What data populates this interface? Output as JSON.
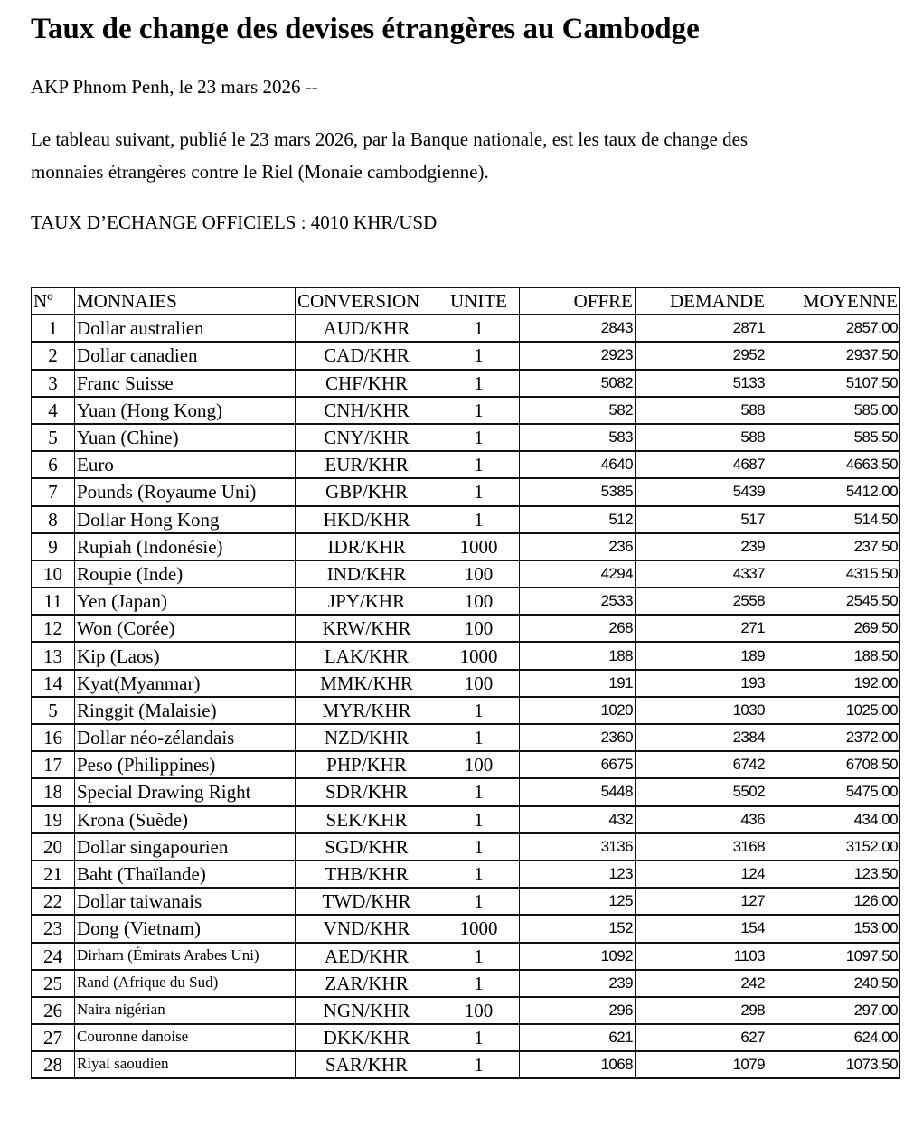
{
  "title": "Taux de change des devises étrangères au Cambodge",
  "dateline": "AKP Phnom Penh, le 23 mars 2026 --",
  "intro_line1": "Le tableau suivant, publié le 23 mars 2026, par la Banque nationale, est les taux de change des",
  "intro_line2": "monnaies étrangères contre le Riel (Monaie cambodgienne).",
  "official_rate": "TAUX D’ECHANGE OFFICIELS :   4010 KHR/USD",
  "table": {
    "headers": [
      "Nº",
      "MONNAIES",
      "CONVERSION",
      "UNITE",
      "OFFRE",
      "DEMANDE",
      "MOYENNE"
    ],
    "rows": [
      [
        "1",
        "Dollar australien",
        "AUD/KHR",
        "1",
        "2843",
        "2871",
        "2857.00"
      ],
      [
        "2",
        "Dollar canadien",
        "CAD/KHR",
        "1",
        "2923",
        "2952",
        "2937.50"
      ],
      [
        "3",
        "Franc Suisse",
        "CHF/KHR",
        "1",
        "5082",
        "5133",
        "5107.50"
      ],
      [
        "4",
        "Yuan (Hong Kong)",
        "CNH/KHR",
        "1",
        "582",
        "588",
        "585.00"
      ],
      [
        "5",
        "Yuan (Chine)",
        "CNY/KHR",
        "1",
        "583",
        "588",
        "585.50"
      ],
      [
        "6",
        "Euro",
        "EUR/KHR",
        "1",
        "4640",
        "4687",
        "4663.50"
      ],
      [
        "7",
        "Pounds (Royaume Uni)",
        "GBP/KHR",
        "1",
        "5385",
        "5439",
        "5412.00"
      ],
      [
        "8",
        "Dollar Hong Kong",
        "HKD/KHR",
        "1",
        "512",
        "517",
        "514.50"
      ],
      [
        "9",
        "Rupiah (Indonésie)",
        "IDR/KHR",
        "1000",
        "236",
        "239",
        "237.50"
      ],
      [
        "10",
        "Roupie (Inde)",
        "IND/KHR",
        "100",
        "4294",
        "4337",
        "4315.50"
      ],
      [
        "11",
        "Yen (Japan)",
        "JPY/KHR",
        "100",
        "2533",
        "2558",
        "2545.50"
      ],
      [
        "12",
        "Won (Corée)",
        "KRW/KHR",
        "100",
        "268",
        "271",
        "269.50"
      ],
      [
        "13",
        "Kip (Laos)",
        "LAK/KHR",
        "1000",
        "188",
        "189",
        "188.50"
      ],
      [
        "14",
        "Kyat(Myanmar)",
        "MMK/KHR",
        "100",
        "191",
        "193",
        "192.00"
      ],
      [
        "5",
        "Ringgit (Malaisie)",
        "MYR/KHR",
        "1",
        "1020",
        "1030",
        "1025.00"
      ],
      [
        "16",
        "Dollar néo-zélandais",
        "NZD/KHR",
        "1",
        "2360",
        "2384",
        "2372.00"
      ],
      [
        "17",
        "Peso (Philippines)",
        "PHP/KHR",
        "100",
        "6675",
        "6742",
        "6708.50"
      ],
      [
        "18",
        "Special Drawing Right",
        "SDR/KHR",
        "1",
        "5448",
        "5502",
        "5475.00"
      ],
      [
        "19",
        "Krona (Suède)",
        "SEK/KHR",
        "1",
        "432",
        "436",
        "434.00"
      ],
      [
        "20",
        "Dollar singapourien",
        "SGD/KHR",
        "1",
        "3136",
        "3168",
        "3152.00"
      ],
      [
        "21",
        "Baht (Thaïlande)",
        "THB/KHR",
        "1",
        "123",
        "124",
        "123.50"
      ],
      [
        "22",
        "Dollar taiwanais",
        "TWD/KHR",
        "1",
        "125",
        "127",
        "126.00"
      ],
      [
        "23",
        "Dong (Vietnam)",
        "VND/KHR",
        "1000",
        "152",
        "154",
        "153.00"
      ],
      [
        "24",
        "Dirham (Émirats Arabes Uni)",
        "AED/KHR",
        "1",
        "1092",
        "1103",
        "1097.50"
      ],
      [
        "25",
        "Rand (Afrique du Sud)",
        "ZAR/KHR",
        "1",
        "239",
        "242",
        "240.50"
      ],
      [
        "26",
        "Naira nigérian",
        "NGN/KHR",
        "100",
        "296",
        "298",
        "297.00"
      ],
      [
        "27",
        "Couronne danoise",
        "DKK/KHR",
        "1",
        "621",
        "627",
        "624.00"
      ],
      [
        "28",
        "Riyal saoudien",
        "SAR/KHR",
        "1",
        "1068",
        "1079",
        "1073.50"
      ]
    ]
  }
}
